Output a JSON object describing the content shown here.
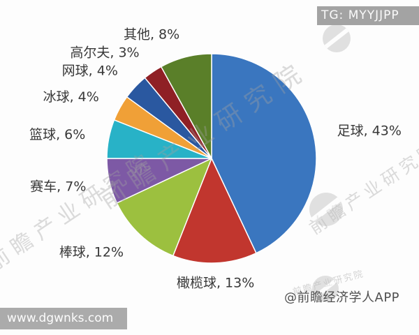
{
  "page": {
    "background": "#FDFDFD"
  },
  "badges": {
    "telegram": "TG: MYYJJPP",
    "website": "www.dgwnks.com"
  },
  "attribution": "@前瞻经济学人APP",
  "watermark": {
    "brand_text": "前瞻产业研究院"
  },
  "colors": {
    "badge_bg": "#A3A3A3",
    "label_text": "#383838",
    "attribution_text": "#4F4F4F"
  },
  "chart_data": {
    "type": "pie",
    "title": "",
    "unit": "%",
    "categories": [
      "足球",
      "橄榄球",
      "棒球",
      "赛车",
      "篮球",
      "冰球",
      "网球",
      "高尔夫",
      "其他"
    ],
    "values": [
      43,
      13,
      12,
      7,
      6,
      4,
      4,
      3,
      8
    ],
    "colors": [
      "#3A76BF",
      "#C1362E",
      "#9CC03F",
      "#7D59A5",
      "#28B2C7",
      "#F0A037",
      "#2A58A0",
      "#8F2025",
      "#5A7F29"
    ],
    "start_angle_deg": 0,
    "direction": "clockwise",
    "legend_position": "none",
    "labels_outside": true,
    "label_format": "{category}, {value}%"
  }
}
